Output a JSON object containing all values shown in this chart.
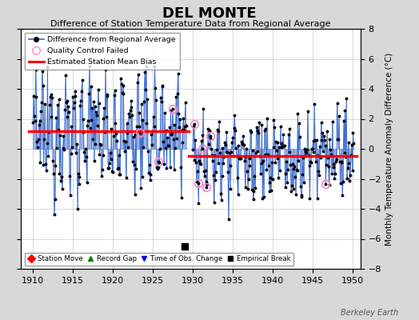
{
  "title": "DEL MONTE",
  "subtitle": "Difference of Station Temperature Data from Regional Average",
  "ylabel_right": "Monthly Temperature Anomaly Difference (°C)",
  "xlim": [
    1908.5,
    1951
  ],
  "ylim": [
    -8,
    8
  ],
  "yticks": [
    -8,
    -6,
    -4,
    -2,
    0,
    2,
    4,
    6,
    8
  ],
  "xticks": [
    1910,
    1915,
    1920,
    1925,
    1930,
    1935,
    1940,
    1945,
    1950
  ],
  "bias_segment1": {
    "x_start": 1909.5,
    "x_end": 1929.5,
    "y": 1.2
  },
  "bias_segment2": {
    "x_start": 1929.5,
    "x_end": 1950.5,
    "y": -0.5
  },
  "empirical_break_x": 1929.0,
  "empirical_break_y": -6.5,
  "background_color": "#d8d8d8",
  "plot_bg_color": "#ffffff",
  "line_color": "#3366cc",
  "bias_color": "#ff0000",
  "marker_color": "#000000",
  "qc_color": "#ff88cc",
  "watermark": "Berkeley Earth",
  "seed": 12345,
  "gap_start": 1929.3,
  "gap_end": 1929.9
}
